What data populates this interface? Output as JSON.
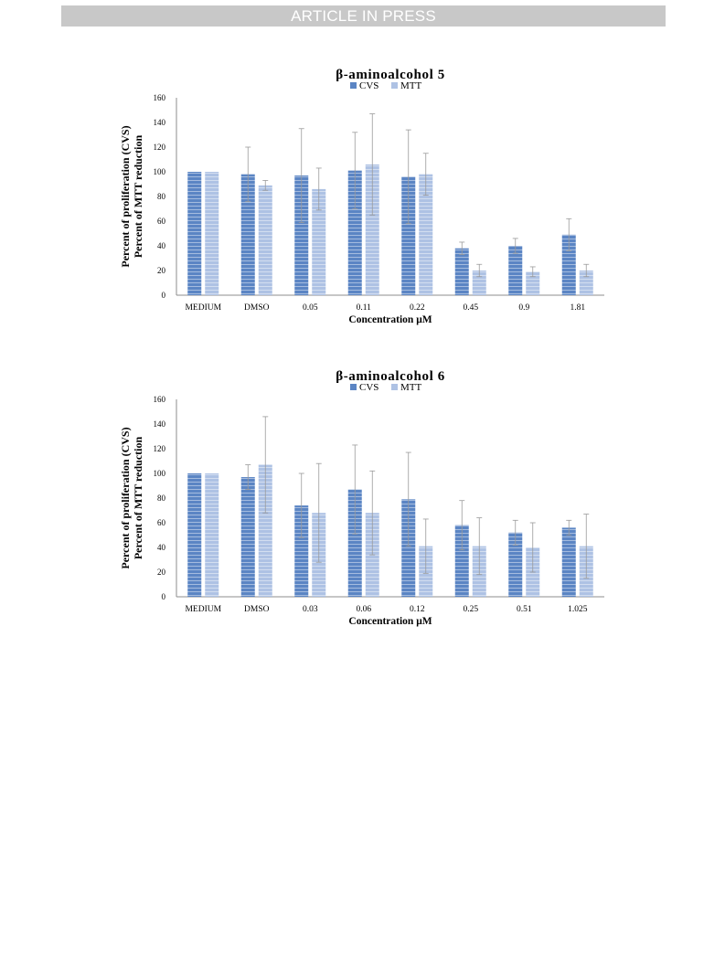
{
  "header": {
    "banner_text": "ARTICLE IN PRESS"
  },
  "colors": {
    "cvs": "#5b85c4",
    "mtt": "#aec2e4",
    "axis": "#8c8c8c",
    "error_bar": "#9a9a9a",
    "text": "#000000"
  },
  "chart_data": [
    {
      "type": "bar",
      "title": "β-aminoalcohol 5",
      "xlabel": "Concentration μM",
      "ylabel": [
        "Percent of proliferation  (CVS)",
        "Percent of MTT reduction"
      ],
      "ylim": [
        0,
        160
      ],
      "yticks": [
        0,
        20,
        40,
        60,
        80,
        100,
        120,
        140,
        160
      ],
      "legend_position": "top-center",
      "categories": [
        "MEDIUM",
        "DMSO",
        "0.05",
        "0.11",
        "0.22",
        "0.45",
        "0.9",
        "1.81"
      ],
      "series": [
        {
          "name": "CVS",
          "values": [
            100,
            98,
            97,
            101,
            96,
            38,
            40,
            49
          ],
          "errors": [
            0,
            22,
            38,
            31,
            38,
            5,
            6,
            13
          ]
        },
        {
          "name": "MTT",
          "values": [
            100,
            89,
            86,
            106,
            98,
            20,
            19,
            20
          ],
          "errors": [
            0,
            4,
            17,
            41,
            17,
            5,
            4,
            5
          ]
        }
      ]
    },
    {
      "type": "bar",
      "title": "β-aminoalcohol 6",
      "xlabel": "Concentration μM",
      "ylabel": [
        "Percent of proliferation  (CVS)",
        "Percent of MTT reduction"
      ],
      "ylim": [
        0,
        160
      ],
      "yticks": [
        0,
        20,
        40,
        60,
        80,
        100,
        120,
        140,
        160
      ],
      "legend_position": "top-center",
      "categories": [
        "MEDIUM",
        "DMSO",
        "0.03",
        "0.06",
        "0.12",
        "0.25",
        "0.51",
        "1.025"
      ],
      "series": [
        {
          "name": "CVS",
          "values": [
            100,
            97,
            74,
            87,
            79,
            58,
            52,
            56
          ],
          "errors": [
            0,
            10,
            26,
            36,
            38,
            20,
            10,
            6
          ]
        },
        {
          "name": "MTT",
          "values": [
            100,
            107,
            68,
            68,
            41,
            41,
            40,
            41
          ],
          "errors": [
            0,
            39,
            40,
            34,
            22,
            23,
            20,
            26
          ]
        }
      ]
    }
  ]
}
